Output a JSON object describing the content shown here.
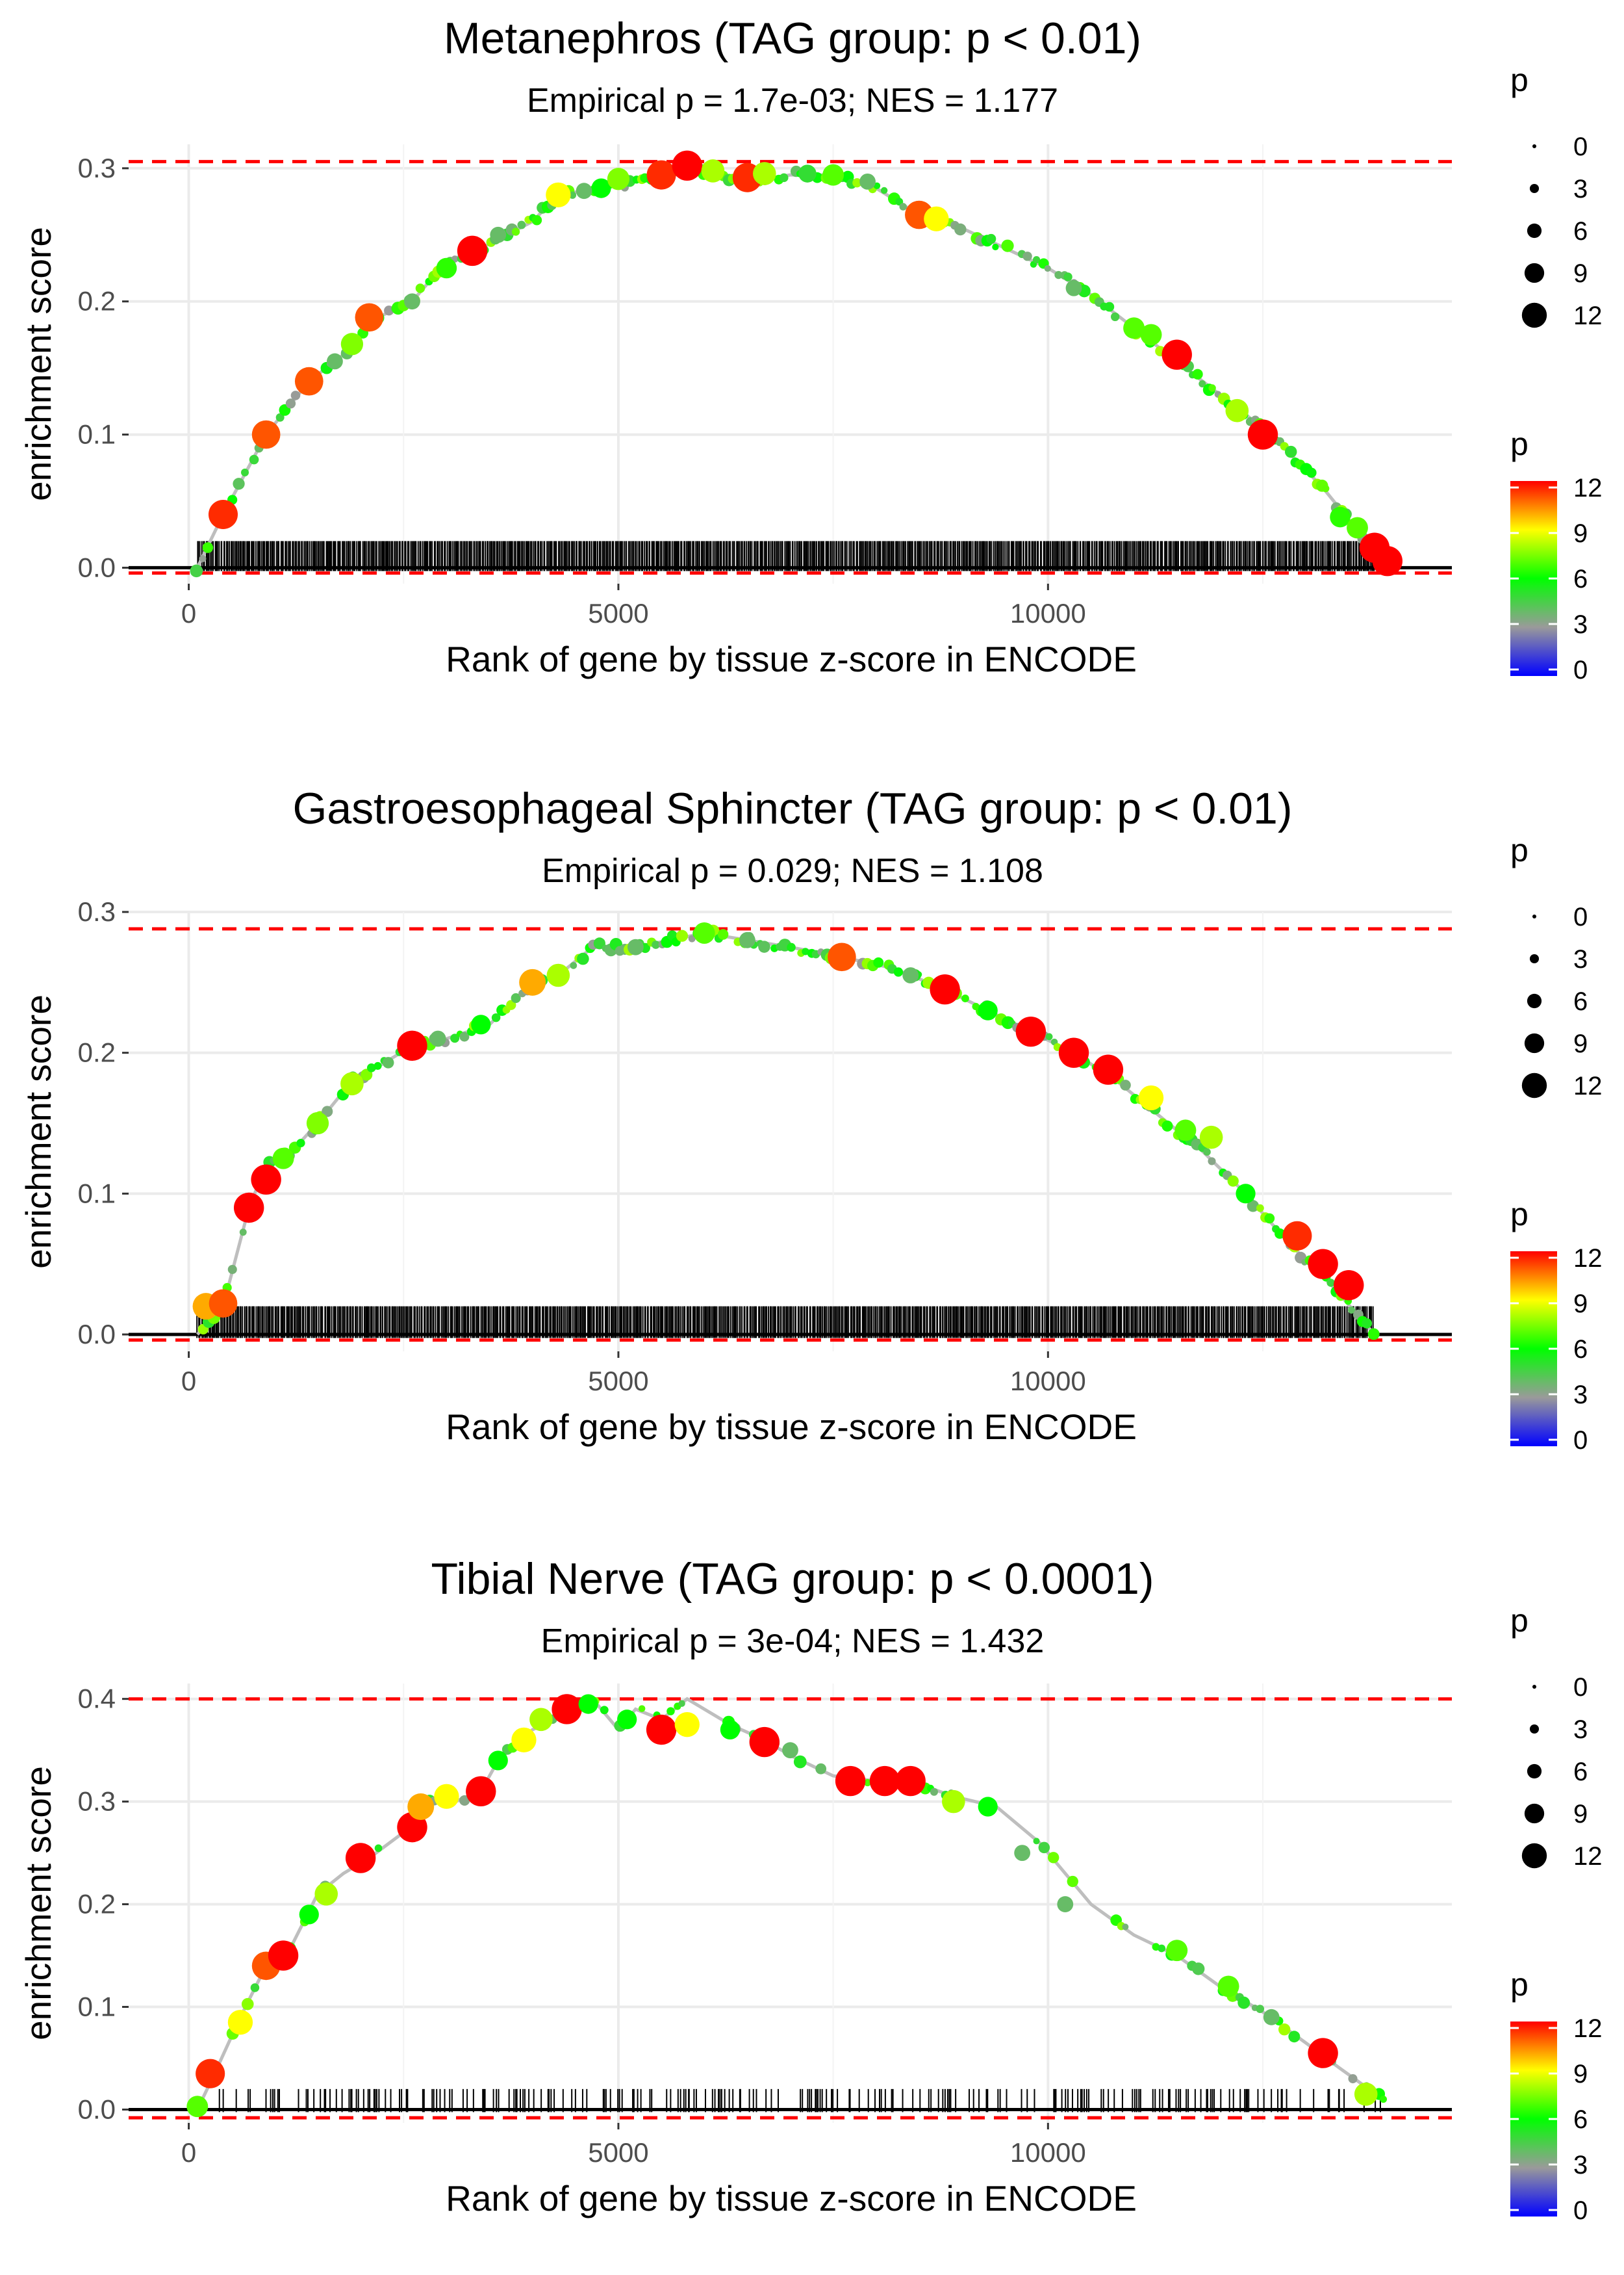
{
  "chart_data": [
    {
      "type": "line",
      "title": "Metanephros (TAG group: p < 0.01)",
      "subtitle": "Empirical p = 1.7e-03; NES = 1.177",
      "xlabel": "Rank of gene by tissue z-score in ENCODE",
      "ylabel": "enrichment score",
      "xlim": [
        -700,
        14700
      ],
      "ylim": [
        -0.012,
        0.318
      ],
      "xticks": [
        0,
        5000,
        10000
      ],
      "xtick_labels": [
        "0",
        "5000",
        "10000"
      ],
      "yticks": [
        0.0,
        0.1,
        0.2,
        0.3
      ],
      "ytick_labels": [
        "0.0",
        "0.1",
        "0.2",
        "0.3"
      ],
      "max_es": 0.305,
      "min_es": -0.004,
      "curve": [
        [
          100,
          0.0
        ],
        [
          400,
          0.04
        ],
        [
          900,
          0.1
        ],
        [
          1400,
          0.14
        ],
        [
          1900,
          0.165
        ],
        [
          2100,
          0.185
        ],
        [
          2600,
          0.2
        ],
        [
          3000,
          0.23
        ],
        [
          3400,
          0.24
        ],
        [
          4000,
          0.26
        ],
        [
          4300,
          0.28
        ],
        [
          4800,
          0.285
        ],
        [
          5200,
          0.29
        ],
        [
          5500,
          0.295
        ],
        [
          5800,
          0.302
        ],
        [
          6200,
          0.295
        ],
        [
          6500,
          0.29
        ],
        [
          7000,
          0.295
        ],
        [
          7500,
          0.295
        ],
        [
          8000,
          0.285
        ],
        [
          8500,
          0.265
        ],
        [
          9000,
          0.255
        ],
        [
          9500,
          0.24
        ],
        [
          10000,
          0.225
        ],
        [
          10500,
          0.205
        ],
        [
          11000,
          0.18
        ],
        [
          11500,
          0.155
        ],
        [
          12000,
          0.13
        ],
        [
          12600,
          0.1
        ],
        [
          13200,
          0.06
        ],
        [
          13700,
          0.02
        ],
        [
          13900,
          0.005
        ]
      ],
      "points": [
        [
          400,
          0.04,
          11.5
        ],
        [
          900,
          0.1,
          11
        ],
        [
          1400,
          0.14,
          11
        ],
        [
          1900,
          0.168,
          7.5
        ],
        [
          2100,
          0.188,
          11
        ],
        [
          2600,
          0.2,
          4
        ],
        [
          3000,
          0.225,
          6.5
        ],
        [
          3300,
          0.238,
          12
        ],
        [
          4300,
          0.28,
          9
        ],
        [
          4800,
          0.285,
          6
        ],
        [
          5000,
          0.292,
          7.5
        ],
        [
          5500,
          0.295,
          11.5
        ],
        [
          5800,
          0.302,
          12
        ],
        [
          6100,
          0.298,
          8
        ],
        [
          6500,
          0.293,
          11.5
        ],
        [
          6700,
          0.296,
          8
        ],
        [
          7200,
          0.296,
          5
        ],
        [
          7500,
          0.295,
          7
        ],
        [
          8500,
          0.265,
          11
        ],
        [
          8700,
          0.262,
          9
        ],
        [
          11000,
          0.18,
          7
        ],
        [
          11200,
          0.175,
          7
        ],
        [
          11500,
          0.16,
          12
        ],
        [
          12200,
          0.118,
          8
        ],
        [
          12500,
          0.1,
          12
        ],
        [
          13400,
          0.038,
          6.5
        ],
        [
          13600,
          0.03,
          7
        ],
        [
          13800,
          0.015,
          12
        ],
        [
          13950,
          0.005,
          12
        ],
        [
          1700,
          0.155,
          4
        ],
        [
          3600,
          0.25,
          4
        ],
        [
          4600,
          0.283,
          4
        ],
        [
          7900,
          0.29,
          4
        ],
        [
          10300,
          0.21,
          4
        ]
      ],
      "rug_density": 1.0,
      "size_legend": {
        "title": "p",
        "values": [
          "0",
          "3",
          "6",
          "9",
          "12"
        ]
      },
      "color_legend": {
        "title": "p",
        "labels": [
          "12",
          "9",
          "6",
          "3",
          "0"
        ]
      }
    },
    {
      "type": "line",
      "title": "Gastroesophageal Sphincter (TAG group: p < 0.01)",
      "subtitle": "Empirical p = 0.029; NES = 1.108",
      "xlabel": "Rank of gene by tissue z-score in ENCODE",
      "ylabel": "enrichment score",
      "xlim": [
        -700,
        14700
      ],
      "ylim": [
        -0.012,
        0.3
      ],
      "xticks": [
        0,
        5000,
        10000
      ],
      "xtick_labels": [
        "0",
        "5000",
        "10000"
      ],
      "yticks": [
        0.0,
        0.1,
        0.2,
        0.3
      ],
      "ytick_labels": [
        "0.0",
        "0.1",
        "0.2",
        "0.3"
      ],
      "max_es": 0.288,
      "min_es": -0.004,
      "curve": [
        [
          100,
          0.0
        ],
        [
          400,
          0.02
        ],
        [
          700,
          0.09
        ],
        [
          900,
          0.12
        ],
        [
          1200,
          0.13
        ],
        [
          1500,
          0.15
        ],
        [
          1900,
          0.18
        ],
        [
          2200,
          0.19
        ],
        [
          2600,
          0.205
        ],
        [
          3000,
          0.21
        ],
        [
          3500,
          0.22
        ],
        [
          4000,
          0.25
        ],
        [
          4300,
          0.255
        ],
        [
          4700,
          0.275
        ],
        [
          5200,
          0.275
        ],
        [
          5600,
          0.28
        ],
        [
          6000,
          0.285
        ],
        [
          6500,
          0.28
        ],
        [
          7000,
          0.275
        ],
        [
          7600,
          0.268
        ],
        [
          8200,
          0.26
        ],
        [
          8800,
          0.245
        ],
        [
          9300,
          0.23
        ],
        [
          9800,
          0.215
        ],
        [
          10300,
          0.2
        ],
        [
          10800,
          0.18
        ],
        [
          11300,
          0.155
        ],
        [
          11800,
          0.13
        ],
        [
          12300,
          0.1
        ],
        [
          12800,
          0.065
        ],
        [
          13300,
          0.035
        ],
        [
          13800,
          0.0
        ]
      ],
      "points": [
        [
          200,
          0.02,
          10
        ],
        [
          400,
          0.022,
          11
        ],
        [
          700,
          0.09,
          12
        ],
        [
          900,
          0.11,
          12
        ],
        [
          1100,
          0.125,
          7
        ],
        [
          1500,
          0.15,
          7.5
        ],
        [
          1900,
          0.178,
          8
        ],
        [
          2600,
          0.205,
          12
        ],
        [
          3400,
          0.22,
          6
        ],
        [
          4000,
          0.25,
          10
        ],
        [
          4300,
          0.255,
          8
        ],
        [
          6000,
          0.285,
          7
        ],
        [
          7600,
          0.268,
          11
        ],
        [
          8800,
          0.245,
          12
        ],
        [
          9300,
          0.23,
          6
        ],
        [
          9800,
          0.215,
          12
        ],
        [
          10300,
          0.2,
          12
        ],
        [
          10700,
          0.188,
          12
        ],
        [
          11200,
          0.168,
          9
        ],
        [
          11600,
          0.145,
          7
        ],
        [
          11900,
          0.14,
          8
        ],
        [
          12300,
          0.1,
          6
        ],
        [
          12900,
          0.07,
          11.5
        ],
        [
          13200,
          0.05,
          12
        ],
        [
          13500,
          0.035,
          12
        ],
        [
          2900,
          0.21,
          4
        ],
        [
          5200,
          0.275,
          4
        ],
        [
          6500,
          0.28,
          4
        ],
        [
          8400,
          0.255,
          4
        ]
      ],
      "rug_density": 1.0,
      "size_legend": {
        "title": "p",
        "values": [
          "0",
          "3",
          "6",
          "9",
          "12"
        ]
      },
      "color_legend": {
        "title": "p",
        "labels": [
          "12",
          "9",
          "6",
          "3",
          "0"
        ]
      }
    },
    {
      "type": "line",
      "title": "Tibial Nerve (TAG group: p < 0.0001)",
      "subtitle": "Empirical p = 3e-04; NES = 1.432",
      "xlabel": "Rank of gene by tissue z-score in ENCODE",
      "ylabel": "enrichment score",
      "xlim": [
        -700,
        14700
      ],
      "ylim": [
        -0.013,
        0.415
      ],
      "xticks": [
        0,
        5000,
        10000
      ],
      "xtick_labels": [
        "0",
        "5000",
        "10000"
      ],
      "yticks": [
        0.0,
        0.1,
        0.2,
        0.3,
        0.4
      ],
      "ytick_labels": [
        "0.0",
        "0.1",
        "0.2",
        "0.3",
        "0.4"
      ],
      "max_es": 0.4,
      "min_es": -0.008,
      "curve": [
        [
          100,
          0.0
        ],
        [
          300,
          0.035
        ],
        [
          600,
          0.09
        ],
        [
          900,
          0.14
        ],
        [
          1200,
          0.16
        ],
        [
          1500,
          0.21
        ],
        [
          1800,
          0.23
        ],
        [
          2100,
          0.245
        ],
        [
          2500,
          0.27
        ],
        [
          2800,
          0.3
        ],
        [
          3100,
          0.3
        ],
        [
          3400,
          0.31
        ],
        [
          3600,
          0.34
        ],
        [
          4000,
          0.37
        ],
        [
          4400,
          0.385
        ],
        [
          4700,
          0.4
        ],
        [
          5000,
          0.37
        ],
        [
          5200,
          0.39
        ],
        [
          5500,
          0.38
        ],
        [
          5800,
          0.4
        ],
        [
          6300,
          0.375
        ],
        [
          6700,
          0.36
        ],
        [
          7000,
          0.345
        ],
        [
          7500,
          0.325
        ],
        [
          8000,
          0.32
        ],
        [
          8400,
          0.32
        ],
        [
          8900,
          0.305
        ],
        [
          9400,
          0.295
        ],
        [
          9900,
          0.26
        ],
        [
          10500,
          0.2
        ],
        [
          11000,
          0.17
        ],
        [
          11500,
          0.15
        ],
        [
          12000,
          0.12
        ],
        [
          12500,
          0.095
        ],
        [
          13000,
          0.065
        ],
        [
          13400,
          0.04
        ],
        [
          13900,
          0.01
        ]
      ],
      "points": [
        [
          100,
          0.003,
          7
        ],
        [
          250,
          0.035,
          11.5
        ],
        [
          600,
          0.085,
          9
        ],
        [
          900,
          0.14,
          11
        ],
        [
          1100,
          0.15,
          12
        ],
        [
          1400,
          0.19,
          6
        ],
        [
          1600,
          0.21,
          8
        ],
        [
          2000,
          0.245,
          12
        ],
        [
          2600,
          0.275,
          12
        ],
        [
          2700,
          0.295,
          10
        ],
        [
          3000,
          0.305,
          9
        ],
        [
          3400,
          0.31,
          12
        ],
        [
          3600,
          0.34,
          6
        ],
        [
          3900,
          0.36,
          9
        ],
        [
          4100,
          0.38,
          8
        ],
        [
          4400,
          0.39,
          12
        ],
        [
          4650,
          0.395,
          6
        ],
        [
          5100,
          0.38,
          6
        ],
        [
          5500,
          0.37,
          12
        ],
        [
          5800,
          0.375,
          9
        ],
        [
          6300,
          0.37,
          6
        ],
        [
          6700,
          0.358,
          12
        ],
        [
          7700,
          0.32,
          12
        ],
        [
          8100,
          0.32,
          12
        ],
        [
          8400,
          0.32,
          12
        ],
        [
          8900,
          0.3,
          8
        ],
        [
          9300,
          0.295,
          6
        ],
        [
          11500,
          0.155,
          7
        ],
        [
          12100,
          0.12,
          7
        ],
        [
          13200,
          0.055,
          12
        ],
        [
          13700,
          0.015,
          8
        ],
        [
          7000,
          0.35,
          4
        ],
        [
          9700,
          0.25,
          4
        ],
        [
          10200,
          0.2,
          4
        ],
        [
          12600,
          0.09,
          4
        ]
      ],
      "rug_density": 0.3,
      "size_legend": {
        "title": "p",
        "values": [
          "0",
          "3",
          "6",
          "9",
          "12"
        ]
      },
      "color_legend": {
        "title": "p",
        "labels": [
          "12",
          "9",
          "6",
          "3",
          "0"
        ]
      }
    }
  ]
}
